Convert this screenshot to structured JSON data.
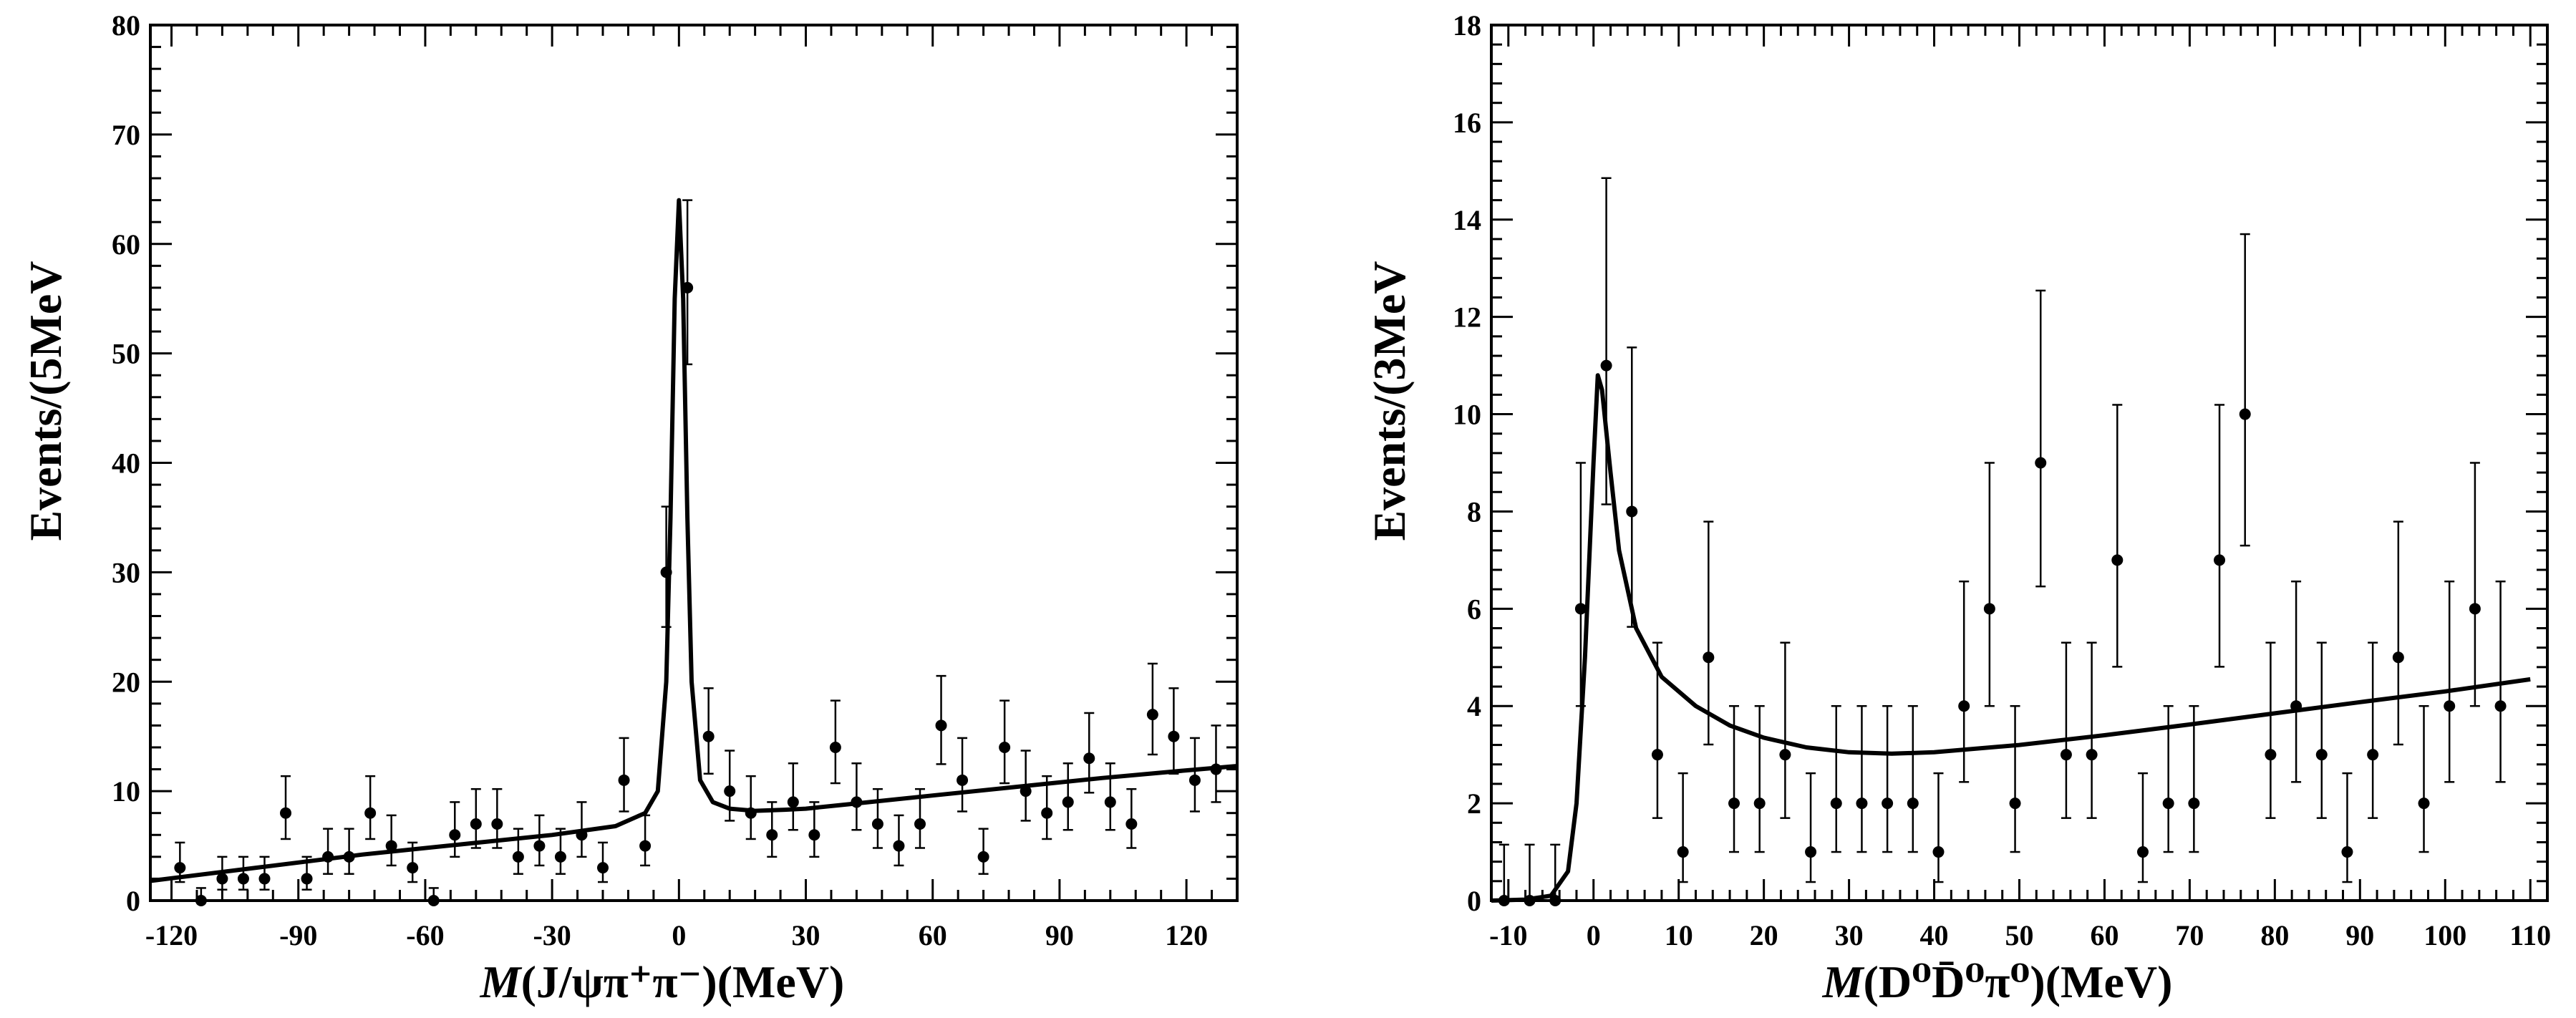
{
  "chart_data": [
    {
      "type": "scatter",
      "panel": "left",
      "xlabel": {
        "var": "M",
        "inner": "(J/ψπ⁺π⁻)",
        "unit": "(MeV)"
      },
      "ylabel": "Events/(5MeV",
      "xlim": [
        -125,
        132
      ],
      "ylim": [
        0,
        80
      ],
      "xticks": [
        -120,
        -90,
        -60,
        -30,
        0,
        30,
        60,
        90,
        120
      ],
      "yticks": [
        0,
        10,
        20,
        30,
        40,
        50,
        60,
        70,
        80
      ],
      "tick_labels_x": [
        "-120",
        "-90",
        "-60",
        "-30",
        "0",
        "30",
        "60",
        "90",
        "120"
      ],
      "tick_labels_y": [
        "0",
        "10",
        "20",
        "30",
        "40",
        "50",
        "60",
        "70",
        "80"
      ],
      "series": [
        {
          "type": "points_with_errors",
          "x": [
            -118,
            -113,
            -108,
            -103,
            -98,
            -93,
            -88,
            -83,
            -78,
            -73,
            -68,
            -63,
            -58,
            -53,
            -48,
            -43,
            -38,
            -33,
            -28,
            -23,
            -18,
            -13,
            -8,
            -3,
            2,
            7,
            12,
            17,
            22,
            27,
            32,
            37,
            42,
            47,
            52,
            57,
            62,
            67,
            72,
            77,
            82,
            87,
            92,
            97,
            102,
            107,
            112,
            117,
            122,
            127
          ],
          "y": [
            3,
            0,
            2,
            2,
            2,
            8,
            2,
            4,
            4,
            8,
            5,
            3,
            0,
            6,
            7,
            7,
            4,
            5,
            4,
            6,
            3,
            11,
            5,
            30,
            56,
            15,
            10,
            8,
            6,
            9,
            6,
            14,
            9,
            7,
            5,
            7,
            16,
            11,
            4,
            14,
            10,
            8,
            9,
            13,
            9,
            7,
            17,
            15,
            11,
            12
          ]
        },
        {
          "type": "fit_curve",
          "x": [
            -125,
            -100,
            -75,
            -50,
            -30,
            -15,
            -8,
            -5,
            -3,
            -2,
            -1,
            0,
            1,
            2,
            3,
            5,
            8,
            12,
            18,
            25,
            30,
            40,
            60,
            80,
            100,
            120,
            132
          ],
          "y": [
            1.8,
            3.0,
            4.2,
            5.2,
            6.0,
            6.8,
            8.0,
            10.0,
            20.0,
            35.0,
            55.0,
            64.0,
            55.0,
            35.0,
            20.0,
            11.0,
            9.0,
            8.4,
            8.2,
            8.3,
            8.4,
            8.8,
            9.6,
            10.4,
            11.2,
            11.9,
            12.3
          ]
        }
      ]
    },
    {
      "type": "scatter",
      "panel": "right",
      "xlabel": {
        "var": "M",
        "inner": "(D⁰D̄⁰π⁰)",
        "unit": "(MeV)"
      },
      "ylabel": "Events/(3MeV",
      "xlim": [
        -12,
        112
      ],
      "ylim": [
        0,
        18
      ],
      "xticks": [
        -10,
        0,
        10,
        20,
        30,
        40,
        50,
        60,
        70,
        80,
        90,
        100,
        110
      ],
      "yticks": [
        0,
        2,
        4,
        6,
        8,
        10,
        12,
        14,
        16,
        18
      ],
      "tick_labels_x": [
        "-10",
        "0",
        "10",
        "20",
        "30",
        "40",
        "50",
        "60",
        "70",
        "80",
        "90",
        "100",
        "110"
      ],
      "tick_labels_y": [
        "0",
        "2",
        "4",
        "6",
        "8",
        "10",
        "12",
        "14",
        "16",
        "18"
      ],
      "series": [
        {
          "type": "points_with_errors",
          "x": [
            -10.5,
            -7.5,
            -4.5,
            -1.5,
            1.5,
            4.5,
            7.5,
            10.5,
            13.5,
            16.5,
            19.5,
            22.5,
            25.5,
            28.5,
            31.5,
            34.5,
            37.5,
            40.5,
            43.5,
            46.5,
            49.5,
            52.5,
            55.5,
            58.5,
            61.5,
            64.5,
            67.5,
            70.5,
            73.5,
            76.5,
            79.5,
            82.5,
            85.5,
            88.5,
            91.5,
            94.5,
            97.5,
            100.5,
            103.5,
            106.5
          ],
          "y": [
            0,
            0,
            0,
            6,
            11,
            8,
            3,
            1,
            5,
            2,
            2,
            3,
            1,
            2,
            2,
            2,
            2,
            1,
            4,
            6,
            2,
            9,
            3,
            3,
            7,
            1,
            2,
            2,
            7,
            10,
            3,
            4,
            3,
            1,
            3,
            5,
            2,
            4,
            6,
            4
          ]
        },
        {
          "type": "fit_curve",
          "x": [
            -12,
            -8,
            -5,
            -3,
            -2,
            -1,
            0,
            0.5,
            1,
            2,
            3,
            5,
            8,
            12,
            16,
            20,
            25,
            30,
            35,
            40,
            50,
            60,
            70,
            80,
            90,
            100,
            110
          ],
          "y": [
            0,
            0.02,
            0.1,
            0.6,
            2.0,
            5.0,
            9.0,
            10.8,
            10.5,
            8.8,
            7.2,
            5.6,
            4.6,
            4.0,
            3.6,
            3.35,
            3.15,
            3.05,
            3.02,
            3.05,
            3.2,
            3.4,
            3.62,
            3.85,
            4.08,
            4.3,
            4.55
          ]
        }
      ]
    }
  ]
}
